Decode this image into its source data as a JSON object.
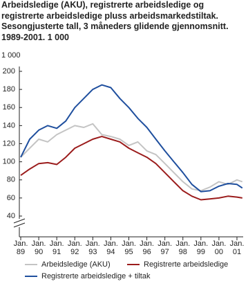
{
  "chart_data": {
    "type": "line",
    "title": "Arbeidsledige (AKU), registrerte arbeidsledige og registrerte arbeidsledige pluss arbeidsmarkedstiltak. Sesongjusterte tall, 3 måneders glidende gjennomsnitt. 1989-2001. 1 000",
    "ylabel": "1 000",
    "x": [
      1989,
      1989.5,
      1990,
      1990.5,
      1991,
      1991.5,
      1992,
      1992.5,
      1993,
      1993.5,
      1994,
      1994.5,
      1995,
      1995.5,
      1996,
      1996.5,
      1997,
      1997.5,
      1998,
      1998.5,
      1999,
      1999.5,
      2000,
      2000.5,
      2001,
      2001.3
    ],
    "series": [
      {
        "name": "Arbeidsledige (AKU)",
        "color": "#c4c4c4",
        "values": [
          105,
          115,
          125,
          122,
          130,
          135,
          140,
          138,
          142,
          130,
          128,
          125,
          118,
          122,
          112,
          108,
          98,
          88,
          78,
          70,
          68,
          72,
          78,
          75,
          80,
          78
        ]
      },
      {
        "name": "Registrerte arbeidsledige",
        "color": "#9b1c1c",
        "values": [
          85,
          92,
          98,
          99,
          97,
          105,
          115,
          120,
          125,
          128,
          125,
          122,
          115,
          110,
          105,
          98,
          88,
          78,
          68,
          62,
          58,
          59,
          60,
          62,
          61,
          60
        ]
      },
      {
        "name": "Registrerte arbeidsledige + tiltak",
        "color": "#1f4f9e",
        "values": [
          105,
          125,
          135,
          140,
          137,
          145,
          160,
          170,
          180,
          185,
          182,
          170,
          160,
          148,
          138,
          125,
          112,
          100,
          88,
          75,
          67,
          68,
          73,
          76,
          75,
          71
        ]
      }
    ],
    "xlim": [
      1989,
      2001.35
    ],
    "xticks": [
      {
        "value": 1989,
        "label": "Jan. 89"
      },
      {
        "value": 1990,
        "label": "Jan. 90"
      },
      {
        "value": 1991,
        "label": "Jan. 91"
      },
      {
        "value": 1992,
        "label": "Jan. 92"
      },
      {
        "value": 1993,
        "label": "Jan. 93"
      },
      {
        "value": 1994,
        "label": "Jan. 94"
      },
      {
        "value": 1995,
        "label": "Jan. 95"
      },
      {
        "value": 1996,
        "label": "Jan. 96"
      },
      {
        "value": 1997,
        "label": "Jan. 97"
      },
      {
        "value": 1998,
        "label": "Jan. 98"
      },
      {
        "value": 1999,
        "label": "Jan. 99"
      },
      {
        "value": 2000,
        "label": "Jan. 00"
      },
      {
        "value": 2001,
        "label": "Jan. 01"
      }
    ],
    "ylim": [
      40,
      200
    ],
    "yticks": [
      40,
      60,
      80,
      100,
      120,
      140,
      160,
      180,
      200
    ],
    "grid": false
  }
}
